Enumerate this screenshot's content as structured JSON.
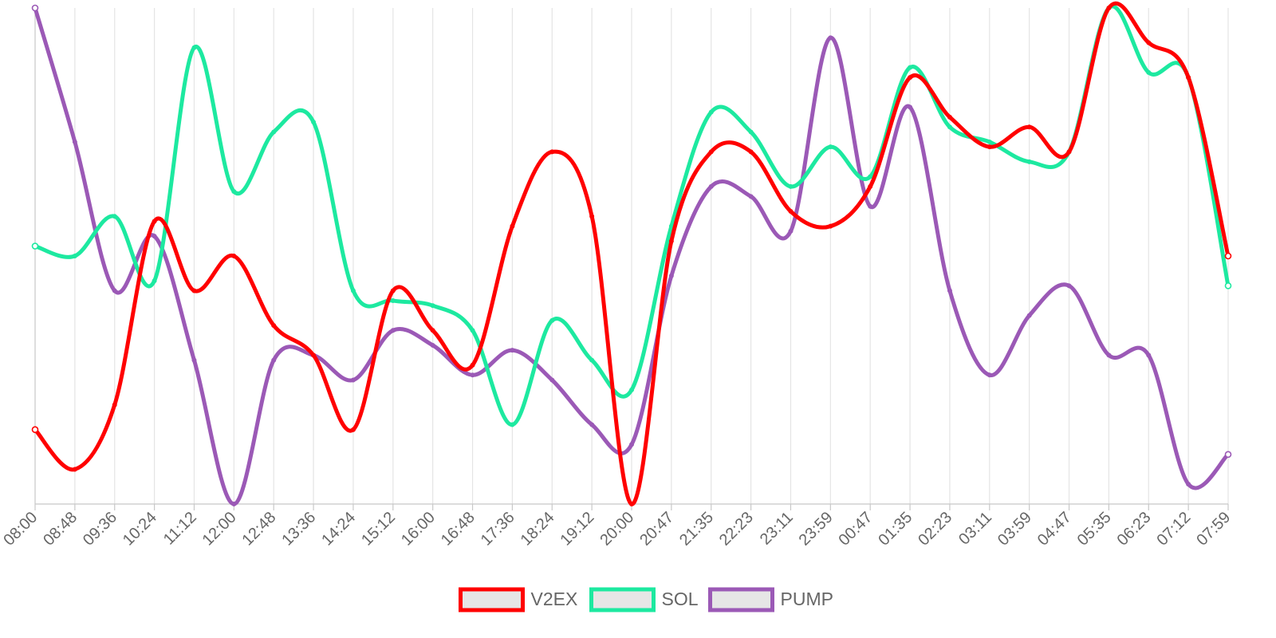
{
  "chart_data": {
    "type": "line",
    "x": [
      "08:00",
      "08:48",
      "09:36",
      "10:24",
      "11:12",
      "12:00",
      "12:48",
      "13:36",
      "14:24",
      "15:12",
      "16:00",
      "16:48",
      "17:36",
      "18:24",
      "19:12",
      "20:00",
      "20:47",
      "21:35",
      "22:23",
      "23:11",
      "23:59",
      "00:47",
      "01:35",
      "02:23",
      "03:11",
      "03:59",
      "04:47",
      "05:35",
      "06:23",
      "07:12",
      "07:59"
    ],
    "ylim": [
      0,
      100
    ],
    "grid": {
      "vertical": true,
      "horizontal": false
    },
    "legend": "bottom",
    "series": [
      {
        "name": "V2EX",
        "color": "#ff0000",
        "values": [
          15,
          7,
          20,
          57,
          43,
          50,
          36,
          30,
          15,
          43,
          35,
          28,
          56,
          71,
          58,
          0,
          53,
          71,
          71,
          59,
          56,
          64,
          86,
          78,
          72,
          76,
          71,
          100,
          93,
          86,
          50
        ]
      },
      {
        "name": "SOL",
        "color": "#1de9a0",
        "values": [
          52,
          50,
          58,
          45,
          92,
          63,
          75,
          77,
          43,
          41,
          40,
          35,
          16,
          37,
          29,
          23,
          56,
          79,
          75,
          64,
          72,
          66,
          88,
          76,
          73,
          69,
          71,
          100,
          87,
          86,
          44
        ]
      },
      {
        "name": "PUMP",
        "color": "#9b59b6",
        "values": [
          100,
          73,
          43,
          54,
          29,
          0,
          29,
          30,
          25,
          35,
          32,
          26,
          31,
          25,
          16,
          12,
          46,
          64,
          62,
          55,
          94,
          60,
          80,
          43,
          26,
          38,
          44,
          30,
          30,
          4,
          10
        ]
      }
    ]
  }
}
